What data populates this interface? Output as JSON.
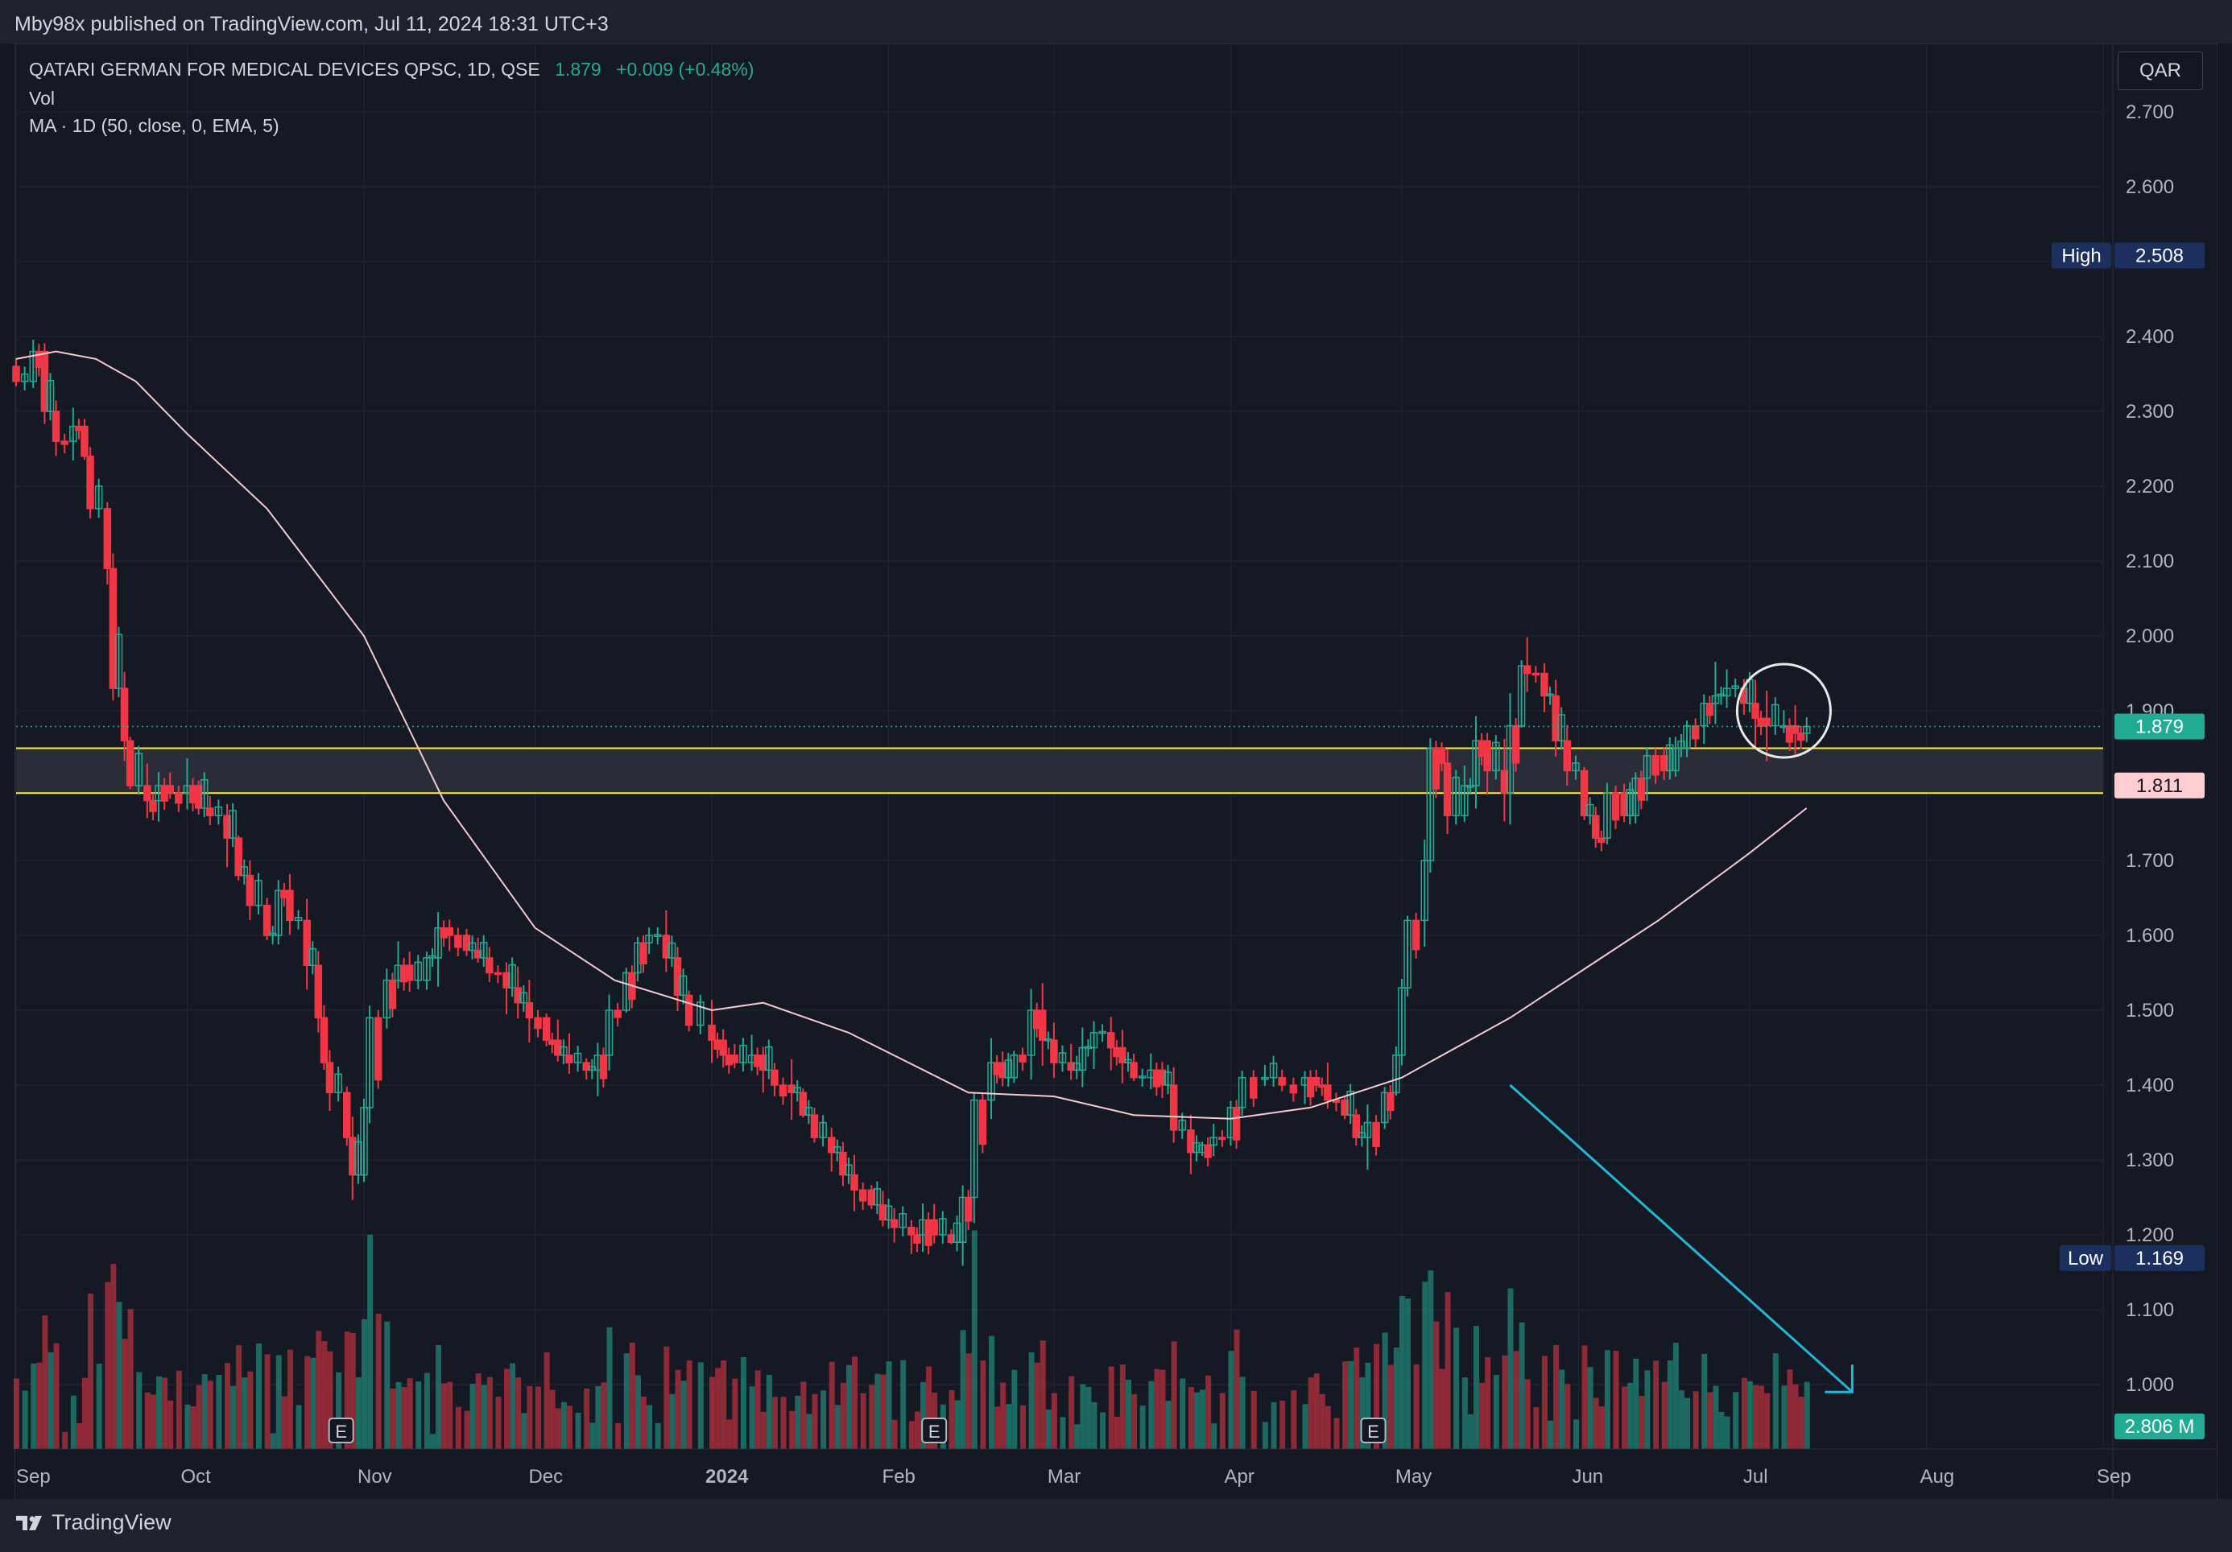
{
  "header": {
    "published": "Mby98x published on TradingView.com, Jul 11, 2024 18:31 UTC+3"
  },
  "legend": {
    "symbol": "QATARI GERMAN FOR MEDICAL DEVICES QPSC, 1D, QSE",
    "price": "1.879",
    "change": "+0.009 (+0.48%)",
    "vol": "Vol",
    "ma": "MA · 1D (50, close, 0, EMA, 5)"
  },
  "currency_button": "QAR",
  "footer": {
    "brand": "TradingView"
  },
  "colors": {
    "background": "#131722",
    "up": "#22ab94",
    "down": "#f23645",
    "ma_line": "#f7c9cf",
    "support_lines": "#ffeb3b",
    "arrow": "#22b8d8",
    "high_low_badge": "#1c3060",
    "current_price_badge": "#22ab94",
    "ma_badge": "#ffcdd2"
  },
  "chart_data": {
    "type": "candlestick",
    "y_axis": {
      "range": [
        0.93,
        2.78
      ],
      "ticks": [
        "2.700",
        "2.600",
        "2.500",
        "2.400",
        "2.300",
        "2.200",
        "2.100",
        "2.000",
        "1.900",
        "1.800",
        "1.700",
        "1.600",
        "1.500",
        "1.400",
        "1.300",
        "1.200",
        "1.100",
        "1.000"
      ]
    },
    "x_axis": {
      "ticks": [
        {
          "label": "Sep",
          "date": "2023-09-01"
        },
        {
          "label": "Oct",
          "date": "2023-10-01"
        },
        {
          "label": "Nov",
          "date": "2023-11-01"
        },
        {
          "label": "Dec",
          "date": "2023-12-01"
        },
        {
          "label": "2024",
          "date": "2024-01-01",
          "bold": true
        },
        {
          "label": "Feb",
          "date": "2024-02-01"
        },
        {
          "label": "Mar",
          "date": "2024-03-01"
        },
        {
          "label": "Apr",
          "date": "2024-04-01"
        },
        {
          "label": "May",
          "date": "2024-05-01"
        },
        {
          "label": "Jun",
          "date": "2024-06-01"
        },
        {
          "label": "Jul",
          "date": "2024-07-01"
        },
        {
          "label": "Aug",
          "date": "2024-08-01"
        },
        {
          "label": "Sep",
          "date": "2024-09-01"
        }
      ],
      "first_date": "2023-09-01",
      "last_visible_date": "2024-09-01"
    },
    "price_points": [
      [
        "2023-09-01",
        2.34
      ],
      [
        "2023-09-04",
        2.38
      ],
      [
        "2023-09-06",
        2.3
      ],
      [
        "2023-09-08",
        2.26
      ],
      [
        "2023-09-11",
        2.28
      ],
      [
        "2023-09-13",
        2.24
      ],
      [
        "2023-09-14",
        2.17
      ],
      [
        "2023-09-17",
        2.09
      ],
      [
        "2023-09-18",
        1.93
      ],
      [
        "2023-09-20",
        1.86
      ],
      [
        "2023-09-21",
        1.8
      ],
      [
        "2023-09-24",
        1.78
      ],
      [
        "2023-09-26",
        1.8
      ],
      [
        "2023-09-28",
        1.79
      ],
      [
        "2023-10-01",
        1.8
      ],
      [
        "2023-10-03",
        1.77
      ],
      [
        "2023-10-05",
        1.76
      ],
      [
        "2023-10-08",
        1.73
      ],
      [
        "2023-10-10",
        1.68
      ],
      [
        "2023-10-12",
        1.64
      ],
      [
        "2023-10-15",
        1.6
      ],
      [
        "2023-10-17",
        1.66
      ],
      [
        "2023-10-19",
        1.62
      ],
      [
        "2023-10-22",
        1.56
      ],
      [
        "2023-10-24",
        1.49
      ],
      [
        "2023-10-25",
        1.43
      ],
      [
        "2023-10-26",
        1.39
      ],
      [
        "2023-10-29",
        1.33
      ],
      [
        "2023-10-30",
        1.28
      ],
      [
        "2023-11-01",
        1.37
      ],
      [
        "2023-11-02",
        1.49
      ],
      [
        "2023-11-05",
        1.54
      ],
      [
        "2023-11-07",
        1.56
      ],
      [
        "2023-11-09",
        1.54
      ],
      [
        "2023-11-12",
        1.57
      ],
      [
        "2023-11-14",
        1.61
      ],
      [
        "2023-11-16",
        1.6
      ],
      [
        "2023-11-19",
        1.58
      ],
      [
        "2023-11-21",
        1.57
      ],
      [
        "2023-11-23",
        1.55
      ],
      [
        "2023-11-26",
        1.53
      ],
      [
        "2023-11-28",
        1.51
      ],
      [
        "2023-11-30",
        1.49
      ],
      [
        "2023-12-03",
        1.46
      ],
      [
        "2023-12-05",
        1.44
      ],
      [
        "2023-12-07",
        1.43
      ],
      [
        "2023-12-10",
        1.42
      ],
      [
        "2023-12-12",
        1.44
      ],
      [
        "2023-12-14",
        1.5
      ],
      [
        "2023-12-17",
        1.55
      ],
      [
        "2023-12-19",
        1.59
      ],
      [
        "2023-12-21",
        1.6
      ],
      [
        "2023-12-24",
        1.57
      ],
      [
        "2023-12-26",
        1.52
      ],
      [
        "2023-12-28",
        1.48
      ],
      [
        "2024-01-01",
        1.46
      ],
      [
        "2024-01-03",
        1.44
      ],
      [
        "2024-01-05",
        1.43
      ],
      [
        "2024-01-08",
        1.44
      ],
      [
        "2024-01-10",
        1.42
      ],
      [
        "2024-01-12",
        1.4
      ],
      [
        "2024-01-15",
        1.39
      ],
      [
        "2024-01-17",
        1.36
      ],
      [
        "2024-01-19",
        1.33
      ],
      [
        "2024-01-22",
        1.31
      ],
      [
        "2024-01-24",
        1.28
      ],
      [
        "2024-01-26",
        1.26
      ],
      [
        "2024-01-29",
        1.24
      ],
      [
        "2024-01-31",
        1.22
      ],
      [
        "2024-02-02",
        1.21
      ],
      [
        "2024-02-05",
        1.2
      ],
      [
        "2024-02-07",
        1.22
      ],
      [
        "2024-02-09",
        1.2
      ],
      [
        "2024-02-12",
        1.19
      ],
      [
        "2024-02-14",
        1.25
      ],
      [
        "2024-02-16",
        1.38
      ],
      [
        "2024-02-19",
        1.43
      ],
      [
        "2024-02-21",
        1.41
      ],
      [
        "2024-02-23",
        1.44
      ],
      [
        "2024-02-26",
        1.5
      ],
      [
        "2024-02-28",
        1.46
      ],
      [
        "2024-03-01",
        1.43
      ],
      [
        "2024-03-04",
        1.42
      ],
      [
        "2024-03-06",
        1.45
      ],
      [
        "2024-03-08",
        1.47
      ],
      [
        "2024-03-11",
        1.45
      ],
      [
        "2024-03-13",
        1.43
      ],
      [
        "2024-03-15",
        1.41
      ],
      [
        "2024-03-18",
        1.42
      ],
      [
        "2024-03-20",
        1.4
      ],
      [
        "2024-03-22",
        1.34
      ],
      [
        "2024-03-25",
        1.31
      ],
      [
        "2024-03-27",
        1.32
      ],
      [
        "2024-03-29",
        1.33
      ],
      [
        "2024-04-01",
        1.37
      ],
      [
        "2024-04-03",
        1.41
      ],
      [
        "2024-04-07",
        1.41
      ],
      [
        "2024-04-10",
        1.4
      ],
      [
        "2024-04-14",
        1.41
      ],
      [
        "2024-04-16",
        1.4
      ],
      [
        "2024-04-18",
        1.38
      ],
      [
        "2024-04-21",
        1.36
      ],
      [
        "2024-04-23",
        1.33
      ],
      [
        "2024-04-25",
        1.35
      ],
      [
        "2024-04-28",
        1.39
      ],
      [
        "2024-04-30",
        1.44
      ],
      [
        "2024-05-01",
        1.53
      ],
      [
        "2024-05-02",
        1.62
      ],
      [
        "2024-05-05",
        1.7
      ],
      [
        "2024-05-06",
        1.85
      ],
      [
        "2024-05-08",
        1.83
      ],
      [
        "2024-05-09",
        1.76
      ],
      [
        "2024-05-12",
        1.8
      ],
      [
        "2024-05-14",
        1.86
      ],
      [
        "2024-05-16",
        1.82
      ],
      [
        "2024-05-19",
        1.79
      ],
      [
        "2024-05-20",
        1.88
      ],
      [
        "2024-05-22",
        1.96
      ],
      [
        "2024-05-23",
        1.95
      ],
      [
        "2024-05-26",
        1.92
      ],
      [
        "2024-05-28",
        1.86
      ],
      [
        "2024-05-30",
        1.82
      ],
      [
        "2024-06-02",
        1.76
      ],
      [
        "2024-06-04",
        1.73
      ],
      [
        "2024-06-06",
        1.79
      ],
      [
        "2024-06-09",
        1.76
      ],
      [
        "2024-06-11",
        1.81
      ],
      [
        "2024-06-13",
        1.84
      ],
      [
        "2024-06-16",
        1.82
      ],
      [
        "2024-06-18",
        1.85
      ],
      [
        "2024-06-20",
        1.88
      ],
      [
        "2024-06-23",
        1.91
      ],
      [
        "2024-06-25",
        1.92
      ],
      [
        "2024-06-27",
        1.93
      ],
      [
        "2024-06-30",
        1.91
      ],
      [
        "2024-07-02",
        1.89
      ],
      [
        "2024-07-04",
        1.88
      ],
      [
        "2024-07-07",
        1.88
      ],
      [
        "2024-07-09",
        1.87
      ],
      [
        "2024-07-11",
        1.879
      ]
    ],
    "series": [
      {
        "name": "MA · 1D (50, close, 0, EMA, 5)",
        "type": "line",
        "points": [
          [
            "2023-09-01",
            2.37
          ],
          [
            "2023-09-08",
            2.38
          ],
          [
            "2023-09-15",
            2.37
          ],
          [
            "2023-09-22",
            2.34
          ],
          [
            "2023-10-01",
            2.27
          ],
          [
            "2023-10-15",
            2.17
          ],
          [
            "2023-11-01",
            2.0
          ],
          [
            "2023-11-15",
            1.78
          ],
          [
            "2023-12-01",
            1.61
          ],
          [
            "2023-12-15",
            1.54
          ],
          [
            "2024-01-01",
            1.5
          ],
          [
            "2024-01-10",
            1.51
          ],
          [
            "2024-01-25",
            1.47
          ],
          [
            "2024-02-15",
            1.39
          ],
          [
            "2024-03-01",
            1.385
          ],
          [
            "2024-03-15",
            1.36
          ],
          [
            "2024-04-01",
            1.355
          ],
          [
            "2024-04-15",
            1.37
          ],
          [
            "2024-05-01",
            1.41
          ],
          [
            "2024-05-20",
            1.49
          ],
          [
            "2024-06-01",
            1.55
          ],
          [
            "2024-06-15",
            1.62
          ],
          [
            "2024-07-01",
            1.71
          ],
          [
            "2024-07-11",
            1.77
          ]
        ]
      },
      {
        "name": "Vol",
        "type": "volume"
      }
    ],
    "horizontal_lines": [
      1.85,
      1.79
    ],
    "last_price": 1.879,
    "high": {
      "label": "High",
      "value": "2.508"
    },
    "low": {
      "label": "Low",
      "value": "1.169"
    },
    "ma_value_label": "1.811",
    "current_price_label": "1.879",
    "volume_label": "2.806 M",
    "earnings_markers": [
      "2023-10-28",
      "2024-02-09",
      "2024-04-26"
    ],
    "earnings_marker_label": "E",
    "annotations": [
      {
        "type": "circle",
        "date": "2024-07-07",
        "price": 1.9
      },
      {
        "type": "arrow",
        "from": [
          "2024-05-20",
          1.4
        ],
        "to": [
          "2024-07-19",
          0.99
        ]
      }
    ]
  }
}
